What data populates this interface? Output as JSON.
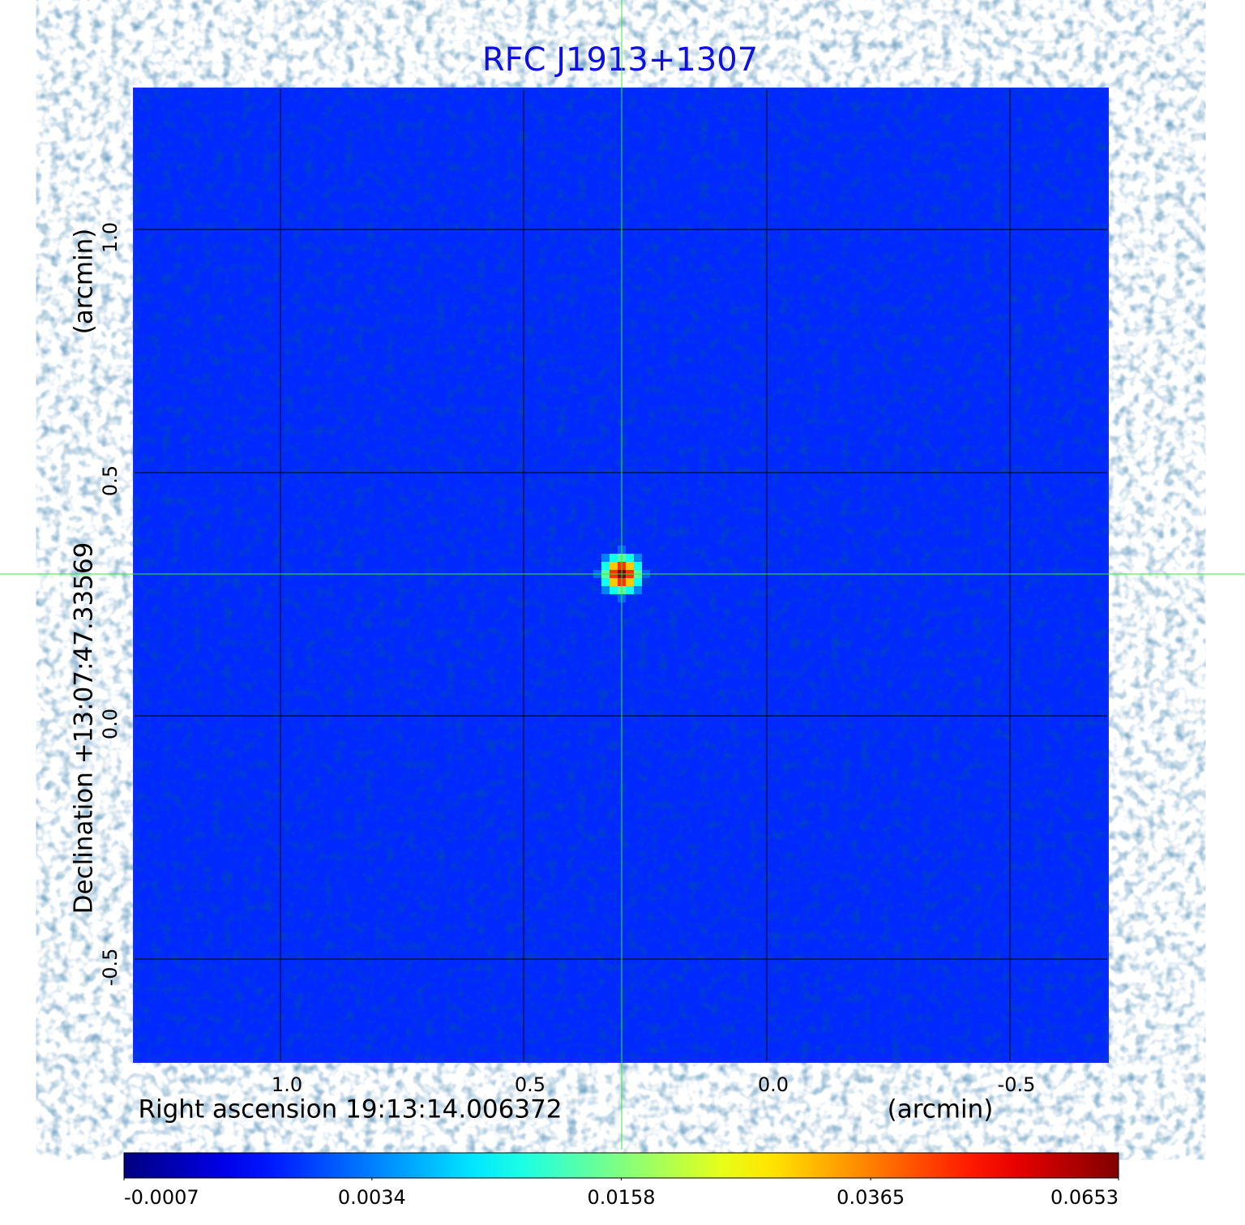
{
  "chart_data": {
    "type": "image",
    "title": "RFC J1913+1307",
    "x_label": "Right ascension  19:13:14.006372",
    "x_unit": "(arcmin)",
    "y_label": "Declination  +13:07:47.33569",
    "y_unit": "(arcmin)",
    "xlim": [
      1.3017,
      -0.7017
    ],
    "ylim": [
      -0.7117,
      1.29
    ],
    "xticks": [
      {
        "value": 1,
        "label": "1.0"
      },
      0.5,
      {
        "value": 0,
        "label": "0.0"
      },
      -0.5
    ],
    "yticks": [
      {
        "value": 1,
        "label": "1.0"
      },
      0.5,
      {
        "value": 0,
        "label": "0.0"
      },
      -0.5
    ],
    "grid": true,
    "crosshair": {
      "x": 0.2983,
      "y": 0.2917,
      "color": "#33ee33"
    },
    "background": 0.0011,
    "source": {
      "x": 0.2983,
      "y": 0.2917,
      "peak": 0.0653
    },
    "colorbar": {
      "lim": [
        -0.0007,
        0.0653
      ],
      "scale": "sqrt",
      "colormap": "jet",
      "ticks": [
        -0.0007,
        0.0034,
        0.0158,
        0.0365,
        0.0653
      ]
    }
  }
}
